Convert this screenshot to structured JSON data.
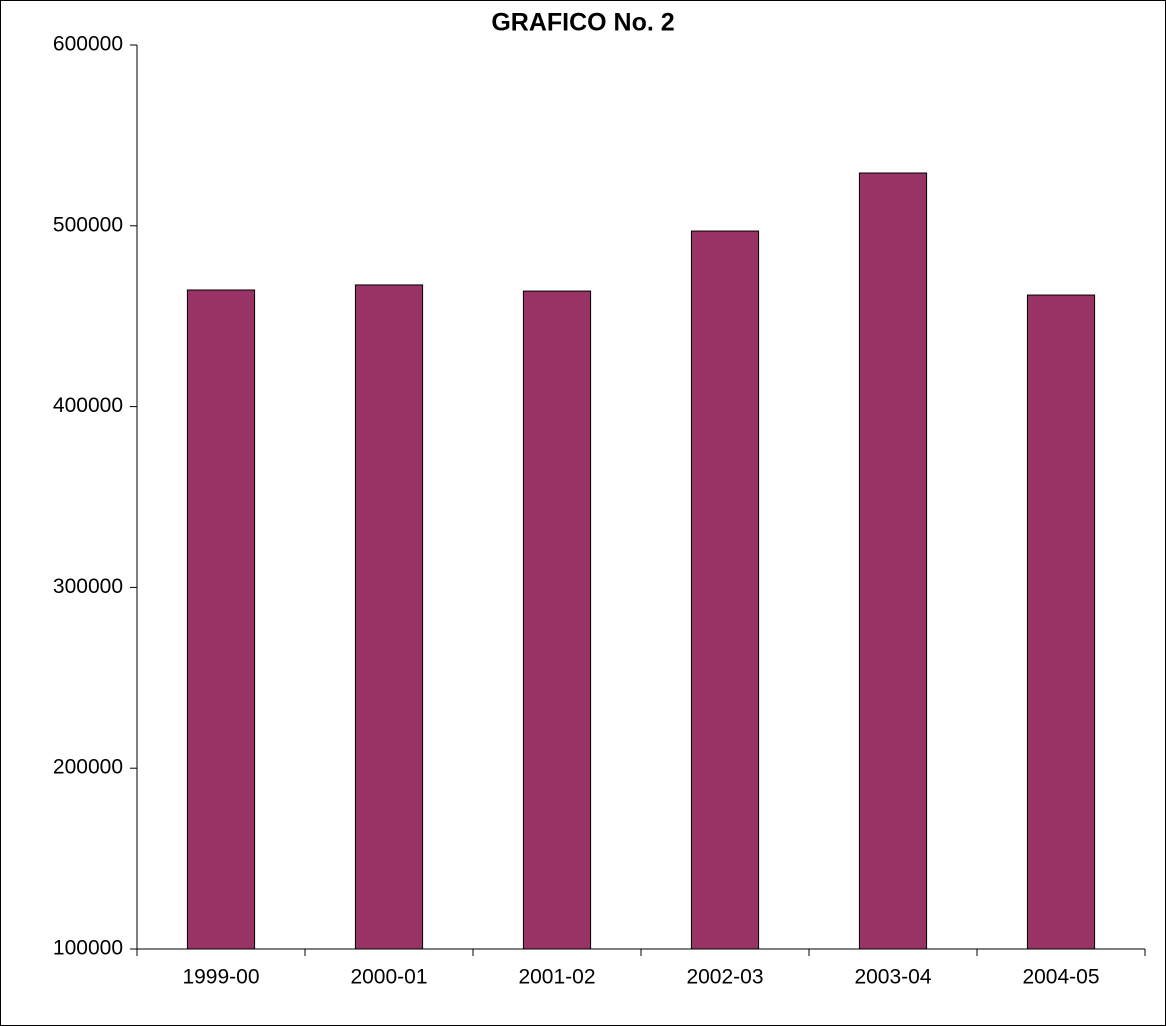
{
  "chart_data": {
    "type": "bar",
    "title": "GRAFICO No. 2",
    "categories": [
      "1999-00",
      "2000-01",
      "2001-02",
      "2002-03",
      "2003-04",
      "2004-05"
    ],
    "values": [
      464500,
      467300,
      463900,
      497100,
      529200,
      461700
    ],
    "color": "#993366",
    "ylim": [
      100000,
      600000
    ],
    "yticks": [
      100000,
      200000,
      300000,
      400000,
      500000,
      600000
    ],
    "grid": false
  }
}
